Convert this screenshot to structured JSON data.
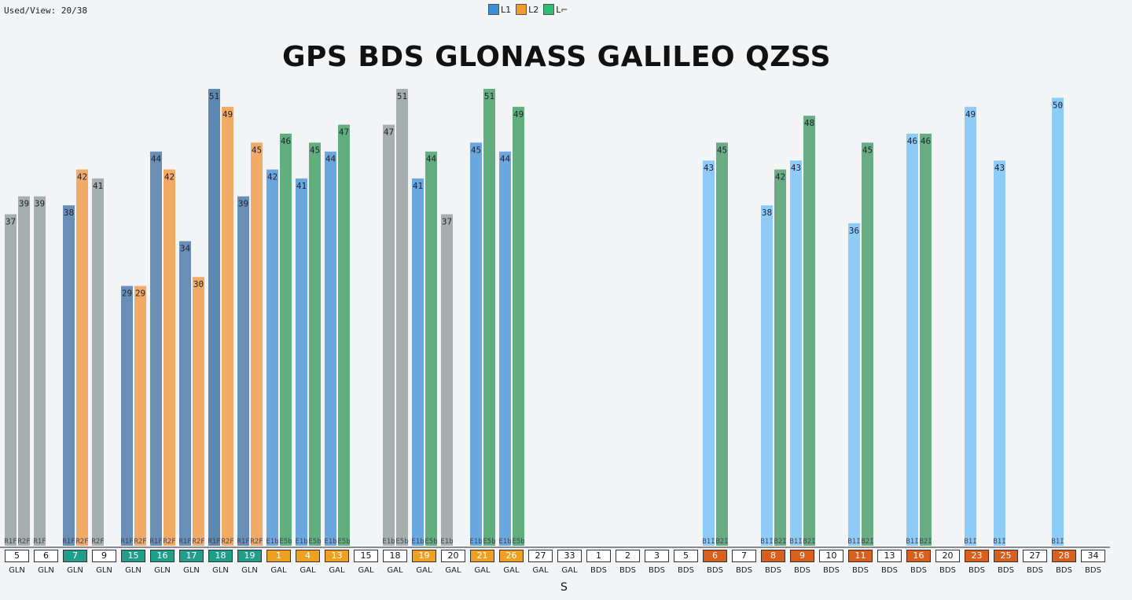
{
  "header": {
    "used_view": "Used/View: 20/38"
  },
  "legend": [
    {
      "label": "L1",
      "color": "#3d8fd6"
    },
    {
      "label": "L2",
      "color": "#f39a2b"
    },
    {
      "label": "L⌐",
      "color": "#2fbf72"
    }
  ],
  "footer_s": "S",
  "colors": {
    "axis": "#222222",
    "gps_used_box": "#1f9e8a",
    "gal_used_box": "#f0a020",
    "bds_used_box": "#d85f1c"
  },
  "chart_data": {
    "type": "bar",
    "title": "GPS BDS GLONASS GALILEO QZSS",
    "ylim": [
      0,
      55
    ],
    "grid": false,
    "satellites": [
      {
        "prn": "5",
        "sys": "GLN",
        "used": false,
        "bars": [
          {
            "value": 37,
            "band": "R1F",
            "color": "#9ea8a6"
          },
          {
            "value": 39,
            "band": "R2F",
            "color": "#9ea8a6"
          }
        ]
      },
      {
        "prn": "6",
        "sys": "GLN",
        "used": false,
        "bars": [
          {
            "value": 39,
            "band": "R1F",
            "color": "#9ea8a6"
          }
        ]
      },
      {
        "prn": "7",
        "sys": "GLN",
        "used": true,
        "bars": [
          {
            "value": 38,
            "band": "R1F",
            "color": "#5e86b0"
          },
          {
            "value": 42,
            "band": "R2F",
            "color": "#f2a35a"
          }
        ]
      },
      {
        "prn": "9",
        "sys": "GLN",
        "used": false,
        "bars": [
          {
            "value": 41,
            "band": "R2F",
            "color": "#9ea8a6"
          }
        ]
      },
      {
        "prn": "15",
        "sys": "GLN",
        "used": true,
        "bars": [
          {
            "value": 29,
            "band": "R1F",
            "color": "#5e86b0"
          },
          {
            "value": 29,
            "band": "R2F",
            "color": "#f2a35a"
          }
        ]
      },
      {
        "prn": "16",
        "sys": "GLN",
        "used": true,
        "bars": [
          {
            "value": 44,
            "band": "R1F",
            "color": "#5e86b0"
          },
          {
            "value": 42,
            "band": "R2F",
            "color": "#f2a35a"
          }
        ]
      },
      {
        "prn": "17",
        "sys": "GLN",
        "used": true,
        "bars": [
          {
            "value": 34,
            "band": "R1F",
            "color": "#5e86b0"
          },
          {
            "value": 30,
            "band": "R2F",
            "color": "#f2a35a"
          }
        ]
      },
      {
        "prn": "18",
        "sys": "GLN",
        "used": true,
        "bars": [
          {
            "value": 51,
            "band": "R1F",
            "color": "#4f7eaa"
          },
          {
            "value": 49,
            "band": "R2F",
            "color": "#f2a35a"
          }
        ]
      },
      {
        "prn": "19",
        "sys": "GLN",
        "used": true,
        "bars": [
          {
            "value": 39,
            "band": "R1F",
            "color": "#5e86b0"
          },
          {
            "value": 45,
            "band": "R2F",
            "color": "#f2a35a"
          }
        ]
      },
      {
        "prn": "1",
        "sys": "GAL",
        "used": true,
        "bars": [
          {
            "value": 42,
            "band": "E1b",
            "color": "#5fa0dc"
          },
          {
            "value": 46,
            "band": "E5b",
            "color": "#55a874"
          }
        ]
      },
      {
        "prn": "4",
        "sys": "GAL",
        "used": true,
        "bars": [
          {
            "value": 41,
            "band": "E1b",
            "color": "#5fa0dc"
          },
          {
            "value": 45,
            "band": "E5b",
            "color": "#55a874"
          }
        ]
      },
      {
        "prn": "13",
        "sys": "GAL",
        "used": true,
        "bars": [
          {
            "value": 44,
            "band": "E1b",
            "color": "#5fa0dc"
          },
          {
            "value": 47,
            "band": "E5b",
            "color": "#55a874"
          }
        ]
      },
      {
        "prn": "15",
        "sys": "GAL",
        "used": false,
        "bars": []
      },
      {
        "prn": "18",
        "sys": "GAL",
        "used": false,
        "bars": [
          {
            "value": 47,
            "band": "E1b",
            "color": "#9ea8a6"
          },
          {
            "value": 51,
            "band": "E5b",
            "color": "#9ea8a6"
          }
        ]
      },
      {
        "prn": "19",
        "sys": "GAL",
        "used": true,
        "bars": [
          {
            "value": 41,
            "band": "E1b",
            "color": "#5fa0dc"
          },
          {
            "value": 44,
            "band": "E5b",
            "color": "#55a874"
          }
        ]
      },
      {
        "prn": "20",
        "sys": "GAL",
        "used": false,
        "bars": [
          {
            "value": 37,
            "band": "E1b",
            "color": "#9ea8a6"
          }
        ]
      },
      {
        "prn": "21",
        "sys": "GAL",
        "used": true,
        "bars": [
          {
            "value": 45,
            "band": "E1b",
            "color": "#5fa0dc"
          },
          {
            "value": 51,
            "band": "E5b",
            "color": "#55a874"
          }
        ]
      },
      {
        "prn": "26",
        "sys": "GAL",
        "used": true,
        "bars": [
          {
            "value": 44,
            "band": "E1b",
            "color": "#5fa0dc"
          },
          {
            "value": 49,
            "band": "E5b",
            "color": "#55a874"
          }
        ]
      },
      {
        "prn": "27",
        "sys": "GAL",
        "used": false,
        "bars": []
      },
      {
        "prn": "33",
        "sys": "GAL",
        "used": false,
        "bars": []
      },
      {
        "prn": "1",
        "sys": "BDS",
        "used": false,
        "bars": []
      },
      {
        "prn": "2",
        "sys": "BDS",
        "used": false,
        "bars": []
      },
      {
        "prn": "3",
        "sys": "BDS",
        "used": false,
        "bars": []
      },
      {
        "prn": "5",
        "sys": "BDS",
        "used": false,
        "bars": []
      },
      {
        "prn": "6",
        "sys": "BDS",
        "used": true,
        "bars": [
          {
            "value": 43,
            "band": "B1I",
            "color": "#86c8f6"
          },
          {
            "value": 45,
            "band": "B2I",
            "color": "#5ea67a"
          }
        ]
      },
      {
        "prn": "7",
        "sys": "BDS",
        "used": false,
        "bars": []
      },
      {
        "prn": "8",
        "sys": "BDS",
        "used": true,
        "bars": [
          {
            "value": 38,
            "band": "B1I",
            "color": "#86c8f6"
          },
          {
            "value": 42,
            "band": "B2I",
            "color": "#5ea67a"
          }
        ]
      },
      {
        "prn": "9",
        "sys": "BDS",
        "used": true,
        "bars": [
          {
            "value": 43,
            "band": "B1I",
            "color": "#86c8f6"
          },
          {
            "value": 48,
            "band": "B2I",
            "color": "#5ea67a"
          }
        ]
      },
      {
        "prn": "10",
        "sys": "BDS",
        "used": false,
        "bars": []
      },
      {
        "prn": "11",
        "sys": "BDS",
        "used": true,
        "bars": [
          {
            "value": 36,
            "band": "B1I",
            "color": "#86c8f6"
          },
          {
            "value": 45,
            "band": "B2I",
            "color": "#5ea67a"
          }
        ]
      },
      {
        "prn": "13",
        "sys": "BDS",
        "used": false,
        "bars": []
      },
      {
        "prn": "16",
        "sys": "BDS",
        "used": true,
        "bars": [
          {
            "value": 46,
            "band": "B1I",
            "color": "#86c8f6"
          },
          {
            "value": 46,
            "band": "B2I",
            "color": "#5ea67a"
          }
        ]
      },
      {
        "prn": "20",
        "sys": "BDS",
        "used": false,
        "bars": []
      },
      {
        "prn": "23",
        "sys": "BDS",
        "used": true,
        "bars": [
          {
            "value": 49,
            "band": "B1I",
            "color": "#86c8f6"
          }
        ]
      },
      {
        "prn": "25",
        "sys": "BDS",
        "used": true,
        "bars": [
          {
            "value": 43,
            "band": "B1I",
            "color": "#86c8f6"
          }
        ]
      },
      {
        "prn": "27",
        "sys": "BDS",
        "used": false,
        "bars": []
      },
      {
        "prn": "28",
        "sys": "BDS",
        "used": true,
        "bars": [
          {
            "value": 50,
            "band": "B1I",
            "color": "#86c8f6"
          }
        ]
      },
      {
        "prn": "34",
        "sys": "BDS",
        "used": false,
        "bars": []
      }
    ]
  }
}
